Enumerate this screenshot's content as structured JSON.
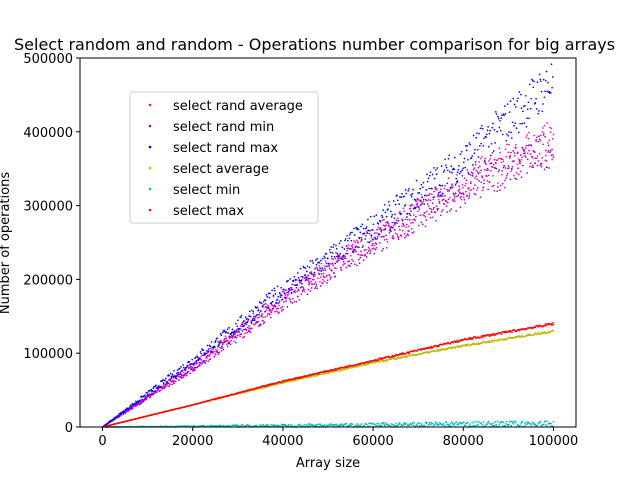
{
  "chart_data": {
    "type": "scatter",
    "title": "Select random and random  - Operations number comparison for big arrays",
    "xlabel": "Array size",
    "ylabel": "Number of operations",
    "xlim": [
      -5000,
      105000
    ],
    "ylim": [
      0,
      500000
    ],
    "xticks": [
      0,
      20000,
      40000,
      60000,
      80000,
      100000
    ],
    "yticks": [
      0,
      100000,
      200000,
      300000,
      400000,
      500000
    ],
    "grid": false,
    "legend_position": "upper-left",
    "series": [
      {
        "name": "select rand average",
        "color": "#ff00aa",
        "x": [
          0,
          20000,
          40000,
          60000,
          80000,
          100000
        ],
        "y": [
          0,
          82000,
          175000,
          255000,
          330000,
          390000
        ]
      },
      {
        "name": "select rand min",
        "color": "#9900cc",
        "x": [
          0,
          20000,
          40000,
          60000,
          80000,
          100000
        ],
        "y": [
          0,
          80000,
          170000,
          250000,
          320000,
          380000
        ]
      },
      {
        "name": "select rand max",
        "color": "#0000ff",
        "x": [
          0,
          20000,
          40000,
          60000,
          80000,
          100000
        ],
        "y": [
          0,
          90000,
          185000,
          270000,
          360000,
          470000
        ]
      },
      {
        "name": "select average",
        "color": "#bbbb00",
        "x": [
          0,
          20000,
          40000,
          60000,
          80000,
          100000
        ],
        "y": [
          0,
          30000,
          60000,
          87000,
          110000,
          130000
        ]
      },
      {
        "name": "select min",
        "color": "#00bbbb",
        "x": [
          0,
          20000,
          40000,
          60000,
          80000,
          100000
        ],
        "y": [
          0,
          1500,
          3000,
          4500,
          6000,
          7000
        ]
      },
      {
        "name": "select max",
        "color": "#ff0000",
        "x": [
          0,
          20000,
          40000,
          60000,
          80000,
          100000
        ],
        "y": [
          0,
          30000,
          62000,
          90000,
          118000,
          140000
        ]
      }
    ]
  }
}
